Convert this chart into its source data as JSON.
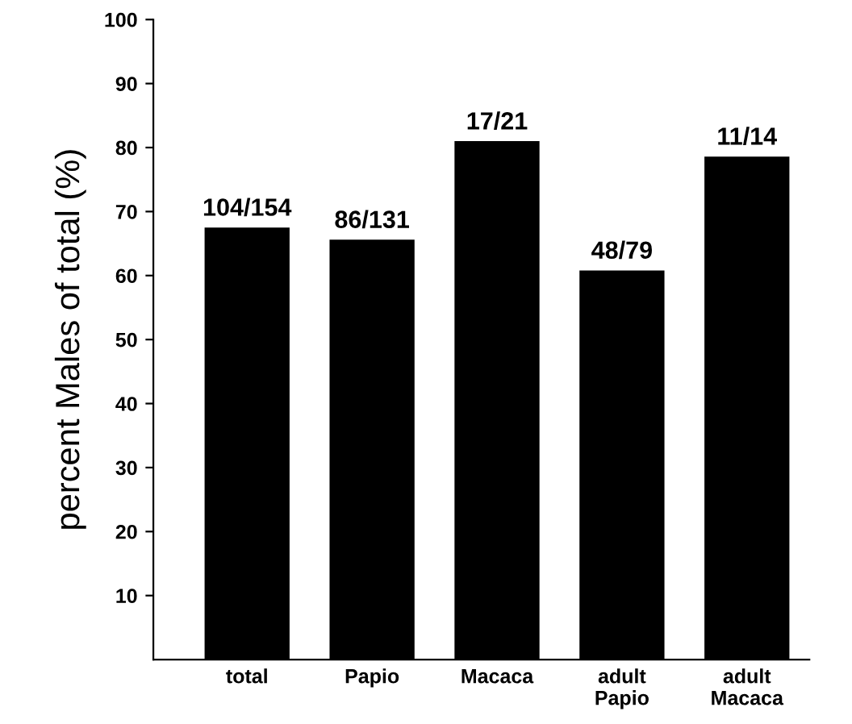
{
  "chart_data": {
    "type": "bar",
    "ylabel": "percent Males of total (%)",
    "categories": [
      "total",
      "Papio",
      "Macaca",
      "adult\nPapio",
      "adult\nMacaca"
    ],
    "values": [
      67.5,
      65.6,
      81.0,
      60.8,
      78.6
    ],
    "value_labels": [
      "104/154",
      "86/131",
      "17/21",
      "48/79",
      "11/14"
    ],
    "color": "#000000",
    "ylim": [
      0,
      100
    ],
    "yticks": [
      10,
      20,
      30,
      40,
      50,
      60,
      70,
      80,
      90,
      100
    ],
    "grid": false,
    "legend": false
  }
}
